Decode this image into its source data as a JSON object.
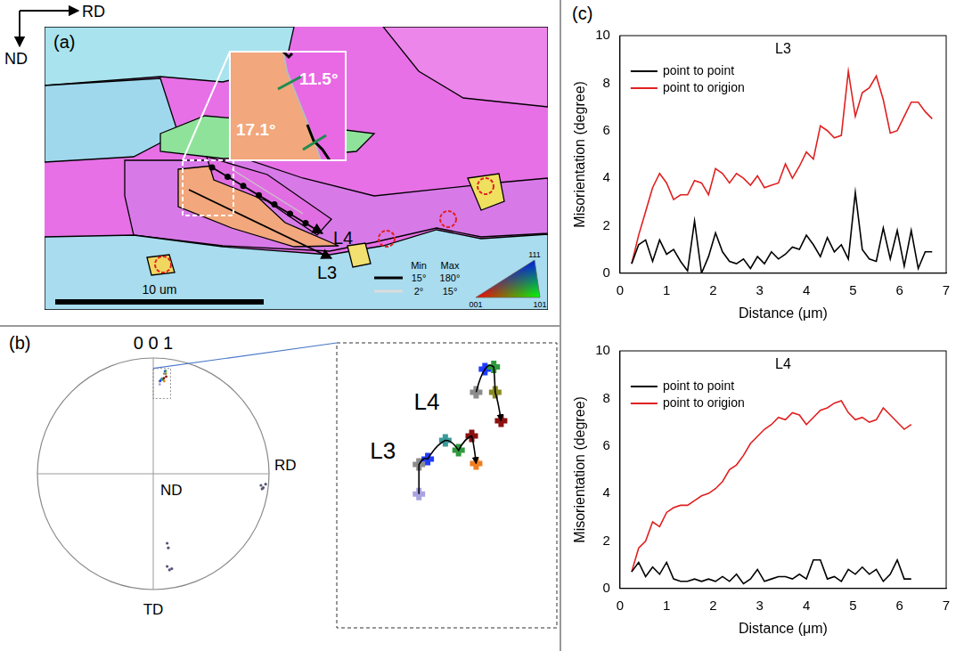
{
  "figure": {
    "a": {
      "label": "(a)",
      "directions": [
        "RD",
        "ND"
      ],
      "misorientations": [
        "11.5°",
        "17.1°"
      ],
      "line_labels": [
        "L3",
        "L4"
      ],
      "scale_bar": "10 um",
      "boundary_key": {
        "columns": [
          "Min",
          "Max"
        ],
        "black": [
          "15°",
          "180°"
        ],
        "gray": [
          "2°",
          "15°"
        ]
      },
      "ipf_key": [
        "001",
        "101",
        "111"
      ]
    },
    "b": {
      "label": "(b)",
      "title": "0 0 1",
      "directions": [
        "RD",
        "ND",
        "TD"
      ],
      "paths": [
        {
          "name": "L4",
          "points": [
            [
              0.095,
              0.865
            ],
            [
              0.101,
              0.886
            ],
            [
              0.107,
              0.888
            ],
            [
              0.108,
              0.865
            ],
            [
              0.112,
              0.839
            ]
          ],
          "colors": [
            "#8c8c8c",
            "#1f3cff",
            "#2e9a3c",
            "#8a8a20",
            "#8b1010"
          ]
        },
        {
          "name": "L3",
          "points": [
            [
              0.056,
              0.772
            ],
            [
              0.056,
              0.799
            ],
            [
              0.062,
              0.804
            ],
            [
              0.074,
              0.821
            ],
            [
              0.083,
              0.812
            ],
            [
              0.092,
              0.825
            ],
            [
              0.095,
              0.8
            ]
          ],
          "colors": [
            "#a9a3e0",
            "#8c8c8c",
            "#1f3cff",
            "#3a9a9a",
            "#2e9a3c",
            "#8b1010",
            "#f07d20"
          ]
        }
      ],
      "other_points": [
        [
          0.93,
          -0.1
        ],
        [
          0.95,
          -0.12
        ],
        [
          0.97,
          -0.09
        ],
        [
          0.94,
          -0.13
        ],
        [
          0.12,
          -0.6
        ],
        [
          0.13,
          -0.64
        ],
        [
          0.12,
          -0.8
        ],
        [
          0.14,
          -0.83
        ],
        [
          0.16,
          -0.82
        ]
      ]
    },
    "c": {
      "label": "(c)"
    }
  },
  "chart_data": [
    {
      "type": "line",
      "title": "L3",
      "x_label": "Distance (μm)",
      "y_label": "Misorientation (degree)",
      "x": [
        0.25,
        0.4,
        0.55,
        0.7,
        0.85,
        1.0,
        1.15,
        1.3,
        1.45,
        1.6,
        1.75,
        1.9,
        2.05,
        2.2,
        2.35,
        2.5,
        2.65,
        2.8,
        2.95,
        3.1,
        3.25,
        3.4,
        3.55,
        3.7,
        3.85,
        4.0,
        4.15,
        4.3,
        4.45,
        4.6,
        4.75,
        4.9,
        5.05,
        5.2,
        5.35,
        5.5,
        5.65,
        5.8,
        5.95,
        6.1,
        6.25,
        6.4,
        6.55,
        6.7
      ],
      "series": [
        {
          "name": "point to point",
          "color": "#000000",
          "values": [
            0.4,
            1.2,
            1.4,
            0.5,
            1.4,
            0.8,
            1.0,
            0.5,
            0.1,
            2.2,
            0.0,
            0.7,
            1.7,
            0.9,
            0.5,
            0.4,
            0.6,
            0.2,
            0.7,
            0.4,
            0.9,
            0.6,
            0.8,
            1.1,
            1.0,
            1.6,
            1.2,
            0.7,
            1.5,
            0.9,
            1.2,
            0.6,
            3.4,
            1.0,
            0.6,
            0.5,
            1.9,
            0.6,
            1.8,
            0.3,
            1.8,
            0.2,
            0.9,
            0.9
          ]
        },
        {
          "name": "point to origion",
          "color": "#e02020",
          "values": [
            0.4,
            1.6,
            2.6,
            3.6,
            4.2,
            3.8,
            3.1,
            3.3,
            3.3,
            3.9,
            3.8,
            3.3,
            4.4,
            4.2,
            3.8,
            4.2,
            4.0,
            3.7,
            4.1,
            3.6,
            3.7,
            3.8,
            4.6,
            4.0,
            4.5,
            5.1,
            4.8,
            6.2,
            6.0,
            5.7,
            5.8,
            8.5,
            6.6,
            7.6,
            7.8,
            8.3,
            7.3,
            5.9,
            6.0,
            6.6,
            7.2,
            7.2,
            6.8,
            6.5
          ]
        }
      ],
      "xlim": [
        0,
        7
      ],
      "xticks": [
        0,
        1,
        2,
        3,
        4,
        5,
        6,
        7
      ],
      "ylim": [
        0,
        10
      ],
      "yticks": [
        0,
        2,
        4,
        6,
        8,
        10
      ],
      "grid": false,
      "legend": "upper left"
    },
    {
      "type": "line",
      "title": "L4",
      "x_label": "Distance (μm)",
      "y_label": "Misorientation (degree)",
      "x": [
        0.25,
        0.4,
        0.55,
        0.7,
        0.85,
        1.0,
        1.15,
        1.3,
        1.45,
        1.6,
        1.75,
        1.9,
        2.05,
        2.2,
        2.35,
        2.5,
        2.65,
        2.8,
        2.95,
        3.1,
        3.25,
        3.4,
        3.55,
        3.7,
        3.85,
        4.0,
        4.15,
        4.3,
        4.45,
        4.6,
        4.75,
        4.9,
        5.05,
        5.2,
        5.35,
        5.5,
        5.65,
        5.8,
        5.95,
        6.1,
        6.25
      ],
      "series": [
        {
          "name": "point to point",
          "color": "#000000",
          "values": [
            0.7,
            1.1,
            0.5,
            0.9,
            0.6,
            1.1,
            0.4,
            0.3,
            0.3,
            0.4,
            0.3,
            0.4,
            0.3,
            0.5,
            0.3,
            0.6,
            0.2,
            0.4,
            0.8,
            0.3,
            0.4,
            0.5,
            0.5,
            0.4,
            0.6,
            0.4,
            1.2,
            1.2,
            0.4,
            0.5,
            0.3,
            0.8,
            0.6,
            0.9,
            0.6,
            0.8,
            0.3,
            0.6,
            1.2,
            0.4,
            0.4
          ]
        },
        {
          "name": "point to origion",
          "color": "#e02020",
          "values": [
            0.7,
            1.7,
            2.0,
            2.8,
            2.6,
            3.2,
            3.4,
            3.5,
            3.5,
            3.7,
            3.9,
            4.0,
            4.2,
            4.5,
            5.0,
            5.2,
            5.6,
            6.1,
            6.4,
            6.7,
            6.9,
            7.2,
            7.1,
            7.4,
            7.3,
            6.9,
            7.2,
            7.5,
            7.6,
            7.8,
            7.9,
            7.4,
            7.1,
            7.2,
            7.0,
            7.1,
            7.6,
            7.3,
            7.0,
            6.7,
            6.9
          ]
        }
      ],
      "xlim": [
        0,
        7
      ],
      "xticks": [
        0,
        1,
        2,
        3,
        4,
        5,
        6,
        7
      ],
      "ylim": [
        0,
        10
      ],
      "yticks": [
        0,
        2,
        4,
        6,
        8,
        10
      ],
      "grid": false,
      "legend": "upper left"
    }
  ]
}
